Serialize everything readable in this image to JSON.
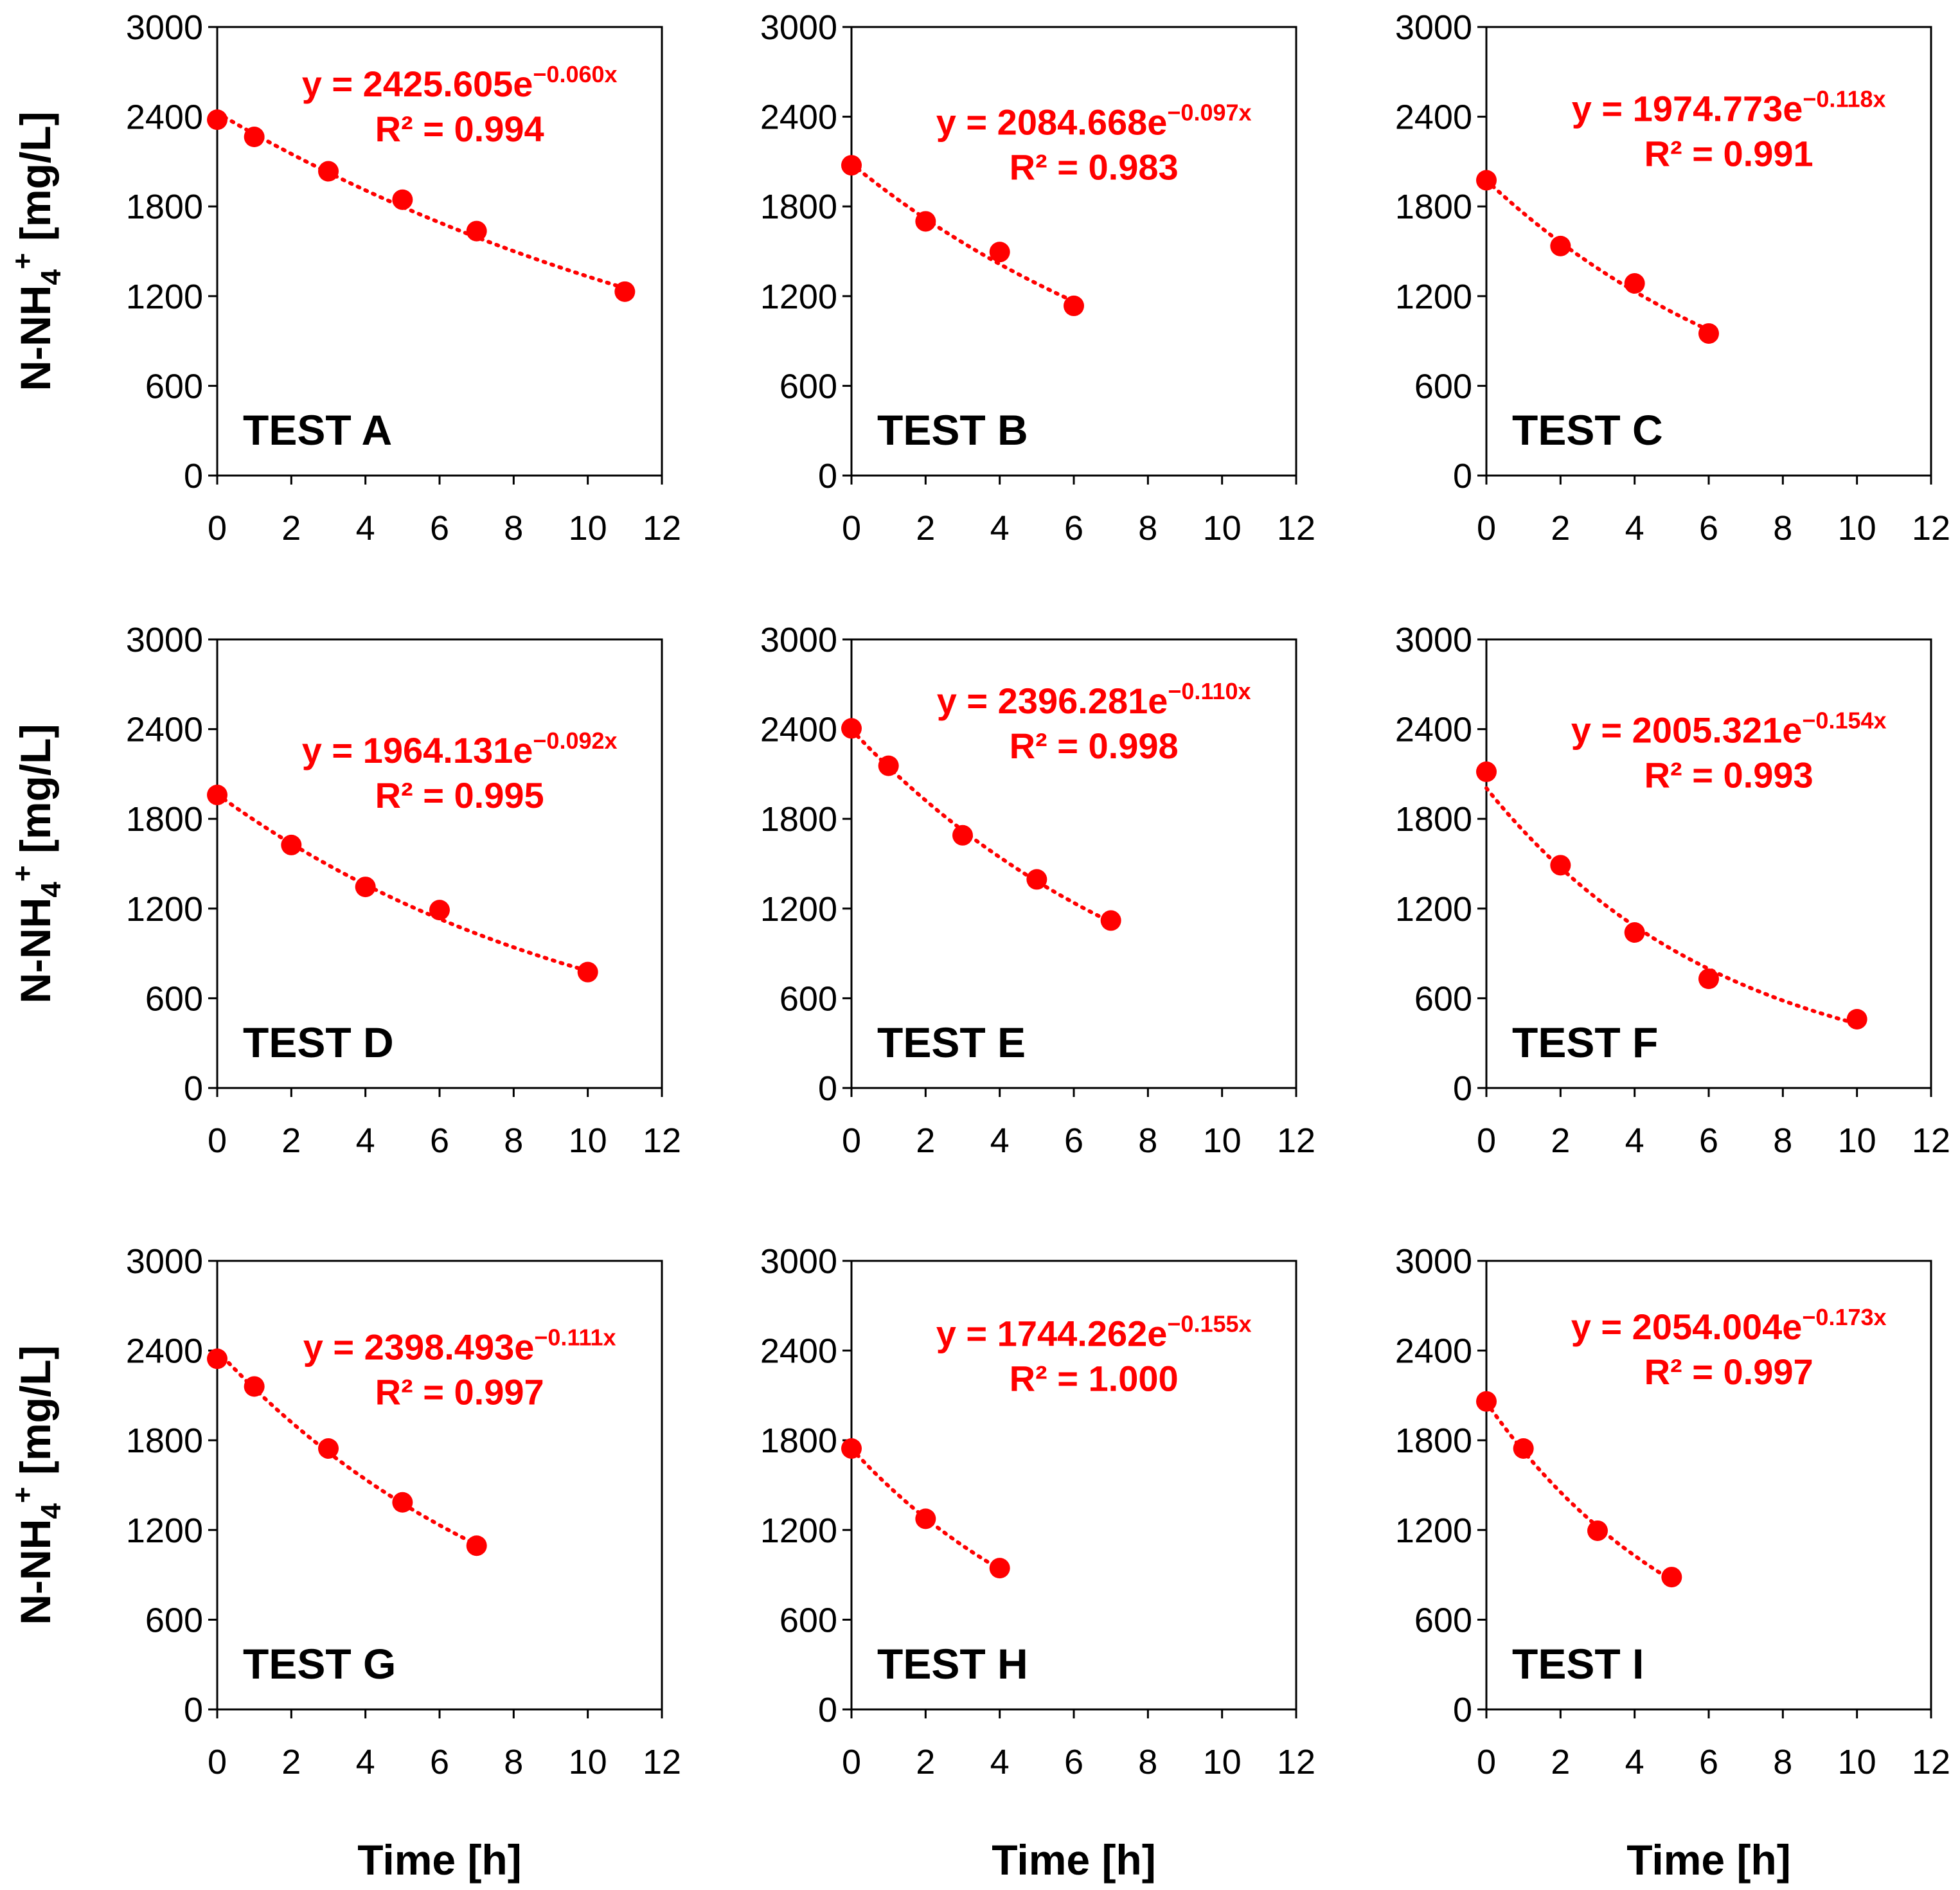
{
  "chart_data": [
    {
      "type": "scatter",
      "label": "TEST A",
      "x": [
        0,
        1,
        3,
        5,
        7,
        11
      ],
      "y": [
        2380,
        2265,
        2035,
        1845,
        1635,
        1230
      ],
      "fit": {
        "a": 2425.605,
        "a_text": "2425.605",
        "b_text": "−0.060x",
        "b": -0.06,
        "r2_text": "0.994"
      },
      "xlim": [
        0,
        12
      ],
      "ylim": [
        0,
        3000
      ]
    },
    {
      "type": "scatter",
      "label": "TEST B",
      "x": [
        0,
        2,
        4,
        6
      ],
      "y": [
        2075,
        1700,
        1495,
        1135
      ],
      "fit": {
        "a": 2084.668,
        "a_text": "2084.668",
        "b_text": "−0.097x",
        "b": -0.097,
        "r2_text": "0.983"
      },
      "xlim": [
        0,
        12
      ],
      "ylim": [
        0,
        3000
      ]
    },
    {
      "type": "scatter",
      "label": "TEST C",
      "x": [
        0,
        2,
        4,
        6
      ],
      "y": [
        1975,
        1535,
        1285,
        950
      ],
      "fit": {
        "a": 1974.773,
        "a_text": "1974.773",
        "b_text": "−0.118x",
        "b": -0.118,
        "r2_text": "0.991"
      },
      "xlim": [
        0,
        12
      ],
      "ylim": [
        0,
        3000
      ]
    },
    {
      "type": "scatter",
      "label": "TEST D",
      "x": [
        0,
        2,
        4,
        6,
        10
      ],
      "y": [
        1960,
        1625,
        1345,
        1190,
        775
      ],
      "fit": {
        "a": 1964.131,
        "a_text": "1964.131",
        "b_text": "−0.092x",
        "b": -0.092,
        "r2_text": "0.995"
      },
      "xlim": [
        0,
        12
      ],
      "ylim": [
        0,
        3000
      ]
    },
    {
      "type": "scatter",
      "label": "TEST E",
      "x": [
        0,
        1,
        3,
        5,
        7
      ],
      "y": [
        2405,
        2155,
        1690,
        1395,
        1120
      ],
      "fit": {
        "a": 2396.281,
        "a_text": "2396.281",
        "b_text": "−0.110x",
        "b": -0.11,
        "r2_text": "0.998"
      },
      "xlim": [
        0,
        12
      ],
      "ylim": [
        0,
        3000
      ]
    },
    {
      "type": "scatter",
      "label": "TEST F",
      "x": [
        0,
        2,
        4,
        6,
        10
      ],
      "y": [
        2115,
        1490,
        1040,
        730,
        460
      ],
      "fit": {
        "a": 2005.321,
        "a_text": "2005.321",
        "b_text": "−0.154x",
        "b": -0.154,
        "r2_text": "0.993"
      },
      "xlim": [
        0,
        12
      ],
      "ylim": [
        0,
        3000
      ]
    },
    {
      "type": "scatter",
      "label": "TEST G",
      "x": [
        0,
        1,
        3,
        5,
        7
      ],
      "y": [
        2345,
        2160,
        1745,
        1385,
        1095
      ],
      "fit": {
        "a": 2398.493,
        "a_text": "2398.493",
        "b_text": "−0.111x",
        "b": -0.111,
        "r2_text": "0.997"
      },
      "xlim": [
        0,
        12
      ],
      "ylim": [
        0,
        3000
      ]
    },
    {
      "type": "scatter",
      "label": "TEST H",
      "x": [
        0,
        2,
        4
      ],
      "y": [
        1745,
        1275,
        945
      ],
      "fit": {
        "a": 1744.262,
        "a_text": "1744.262",
        "b_text": "−0.155x",
        "b": -0.155,
        "r2_text": "1.000"
      },
      "xlim": [
        0,
        12
      ],
      "ylim": [
        0,
        3000
      ]
    },
    {
      "type": "scatter",
      "label": "TEST I",
      "x": [
        0,
        1,
        3,
        5
      ],
      "y": [
        2060,
        1745,
        1195,
        885
      ],
      "fit": {
        "a": 2054.004,
        "a_text": "2054.004",
        "b_text": "−0.173x",
        "b": -0.173,
        "r2_text": "0.997"
      },
      "xlim": [
        0,
        12
      ],
      "ylim": [
        0,
        3000
      ]
    }
  ],
  "labels": {
    "ylabel_main": "N-NH",
    "ylabel_sub": "4",
    "ylabel_sup": "+",
    "ylabel_units": " [mg/L]",
    "xlabel": "Time [h]",
    "eq_prefix": "y = ",
    "eq_base": "e",
    "r2_text_prefix": "R² = "
  },
  "axes": {
    "yticks": [
      0,
      600,
      1200,
      1800,
      2400,
      3000
    ],
    "xticks": [
      0,
      2,
      4,
      6,
      8,
      10,
      12
    ]
  },
  "colors": {
    "series": "#ff0000",
    "axis": "#000000"
  }
}
